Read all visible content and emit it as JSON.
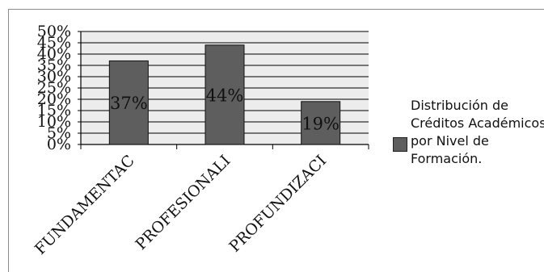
{
  "chart_data": {
    "type": "bar",
    "categories": [
      "FUNDAMENTAC",
      "PROFESIONALI",
      "PROFUNDIZACI"
    ],
    "series": [
      {
        "name": "Distribución de Créditos Académicos por Nivel de Formación.",
        "values": [
          37,
          44,
          19
        ]
      }
    ],
    "data_labels": [
      "37%",
      "44%",
      "19%"
    ],
    "y_ticks": [
      "0%",
      "5%",
      "10%",
      "15%",
      "20%",
      "25%",
      "30%",
      "35%",
      "40%",
      "45%",
      "50%"
    ],
    "ylim": [
      0,
      50
    ],
    "grid": true,
    "legend_position": "right",
    "title": "",
    "xlabel": "",
    "ylabel": "",
    "colors": {
      "bar": "#5e5e5e",
      "plot_background": "#ececec",
      "grid": "#000000"
    }
  }
}
